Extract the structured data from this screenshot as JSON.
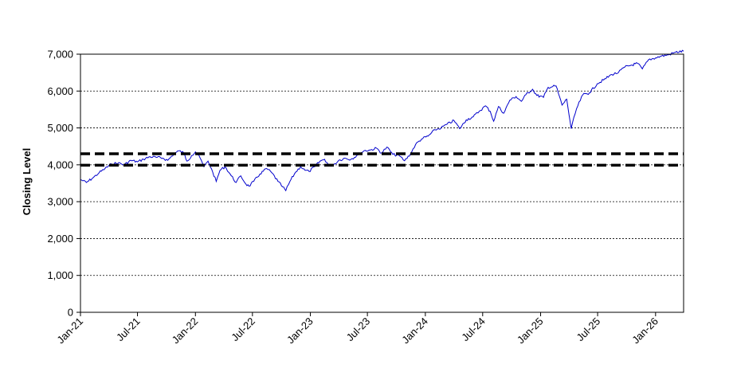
{
  "chart_data": {
    "type": "line",
    "title": "",
    "xlabel": "",
    "ylabel": "Closing Level",
    "ylim": [
      0,
      7000
    ],
    "yticks": [
      0,
      1000,
      2000,
      3000,
      4000,
      5000,
      6000,
      7000
    ],
    "ytick_labels": [
      "0",
      "1,000",
      "2,000",
      "3,000",
      "4,000",
      "5,000",
      "6,000",
      "7,000"
    ],
    "xlim": [
      "2021-01-01",
      "2026-03-31"
    ],
    "xticks": [
      "2021-01-01",
      "2021-07-01",
      "2022-01-01",
      "2022-07-01",
      "2023-01-01",
      "2023-07-01",
      "2024-01-01",
      "2024-07-01",
      "2025-01-01",
      "2025-07-01",
      "2026-01-01"
    ],
    "xtick_labels": [
      "Jan-21",
      "Jul-21",
      "Jan-22",
      "Jul-22",
      "Jan-23",
      "Jul-23",
      "Jan-24",
      "Jul-24",
      "Jan-25",
      "Jul-25",
      "Jan-26"
    ],
    "grid": "horizontal dotted",
    "series": [
      {
        "color": "#0000cc",
        "points": [
          [
            "2021-01-01",
            3600
          ],
          [
            "2021-01-20",
            3520
          ],
          [
            "2021-02-10",
            3650
          ],
          [
            "2021-03-01",
            3780
          ],
          [
            "2021-03-20",
            3900
          ],
          [
            "2021-04-10",
            4020
          ],
          [
            "2021-05-01",
            4050
          ],
          [
            "2021-05-20",
            4000
          ],
          [
            "2021-06-10",
            4120
          ],
          [
            "2021-07-01",
            4080
          ],
          [
            "2021-07-20",
            4150
          ],
          [
            "2021-08-10",
            4220
          ],
          [
            "2021-09-01",
            4200
          ],
          [
            "2021-09-20",
            4180
          ],
          [
            "2021-10-05",
            4120
          ],
          [
            "2021-10-25",
            4300
          ],
          [
            "2021-11-10",
            4380
          ],
          [
            "2021-11-25",
            4320
          ],
          [
            "2021-12-05",
            4100
          ],
          [
            "2021-12-20",
            4250
          ],
          [
            "2022-01-01",
            4350
          ],
          [
            "2022-01-15",
            4200
          ],
          [
            "2022-01-28",
            3950
          ],
          [
            "2022-02-10",
            4100
          ],
          [
            "2022-02-25",
            3800
          ],
          [
            "2022-03-08",
            3550
          ],
          [
            "2022-03-20",
            3850
          ],
          [
            "2022-04-05",
            3950
          ],
          [
            "2022-04-25",
            3700
          ],
          [
            "2022-05-10",
            3520
          ],
          [
            "2022-05-25",
            3700
          ],
          [
            "2022-06-10",
            3480
          ],
          [
            "2022-06-20",
            3420
          ],
          [
            "2022-07-05",
            3550
          ],
          [
            "2022-07-25",
            3750
          ],
          [
            "2022-08-15",
            3900
          ],
          [
            "2022-09-01",
            3780
          ],
          [
            "2022-09-20",
            3550
          ],
          [
            "2022-10-05",
            3400
          ],
          [
            "2022-10-15",
            3300
          ],
          [
            "2022-10-28",
            3550
          ],
          [
            "2022-11-15",
            3800
          ],
          [
            "2022-12-01",
            3950
          ],
          [
            "2022-12-15",
            3850
          ],
          [
            "2022-12-28",
            3820
          ],
          [
            "2023-01-15",
            3950
          ],
          [
            "2023-02-01",
            4100
          ],
          [
            "2023-02-15",
            4150
          ],
          [
            "2023-03-01",
            3980
          ],
          [
            "2023-03-15",
            4000
          ],
          [
            "2023-04-01",
            4120
          ],
          [
            "2023-04-20",
            4180
          ],
          [
            "2023-05-10",
            4150
          ],
          [
            "2023-06-01",
            4270
          ],
          [
            "2023-06-20",
            4380
          ],
          [
            "2023-07-10",
            4400
          ],
          [
            "2023-07-30",
            4450
          ],
          [
            "2023-08-15",
            4320
          ],
          [
            "2023-09-01",
            4480
          ],
          [
            "2023-09-20",
            4280
          ],
          [
            "2023-10-10",
            4250
          ],
          [
            "2023-10-27",
            4110
          ],
          [
            "2023-11-15",
            4300
          ],
          [
            "2023-12-01",
            4550
          ],
          [
            "2023-12-20",
            4700
          ],
          [
            "2024-01-10",
            4780
          ],
          [
            "2024-02-01",
            4950
          ],
          [
            "2024-02-20",
            5000
          ],
          [
            "2024-03-10",
            5100
          ],
          [
            "2024-04-01",
            5200
          ],
          [
            "2024-04-19",
            4980
          ],
          [
            "2024-05-10",
            5220
          ],
          [
            "2024-06-01",
            5300
          ],
          [
            "2024-06-20",
            5450
          ],
          [
            "2024-07-10",
            5600
          ],
          [
            "2024-07-25",
            5450
          ],
          [
            "2024-08-05",
            5180
          ],
          [
            "2024-08-20",
            5580
          ],
          [
            "2024-09-06",
            5400
          ],
          [
            "2024-09-25",
            5750
          ],
          [
            "2024-10-15",
            5850
          ],
          [
            "2024-11-01",
            5720
          ],
          [
            "2024-11-15",
            5900
          ],
          [
            "2024-12-06",
            6050
          ],
          [
            "2024-12-20",
            5880
          ],
          [
            "2025-01-10",
            5830
          ],
          [
            "2025-01-25",
            6100
          ],
          [
            "2025-02-19",
            6140
          ],
          [
            "2025-03-10",
            5620
          ],
          [
            "2025-03-25",
            5780
          ],
          [
            "2025-04-08",
            4980
          ],
          [
            "2025-04-25",
            5520
          ],
          [
            "2025-05-15",
            5900
          ],
          [
            "2025-06-05",
            5950
          ],
          [
            "2025-06-30",
            6200
          ],
          [
            "2025-07-20",
            6300
          ],
          [
            "2025-08-15",
            6450
          ],
          [
            "2025-09-05",
            6500
          ],
          [
            "2025-09-25",
            6650
          ],
          [
            "2025-10-15",
            6700
          ],
          [
            "2025-11-05",
            6750
          ],
          [
            "2025-11-20",
            6600
          ],
          [
            "2025-12-10",
            6850
          ],
          [
            "2026-01-01",
            6900
          ],
          [
            "2026-01-20",
            6950
          ],
          [
            "2026-02-10",
            6980
          ],
          [
            "2026-03-05",
            7050
          ],
          [
            "2026-03-31",
            7080
          ]
        ]
      }
    ],
    "reference_lines": [
      {
        "y": 4300,
        "style": "dashed",
        "color": "#000000"
      },
      {
        "y": 3990,
        "style": "dashed",
        "color": "#000000"
      }
    ]
  }
}
